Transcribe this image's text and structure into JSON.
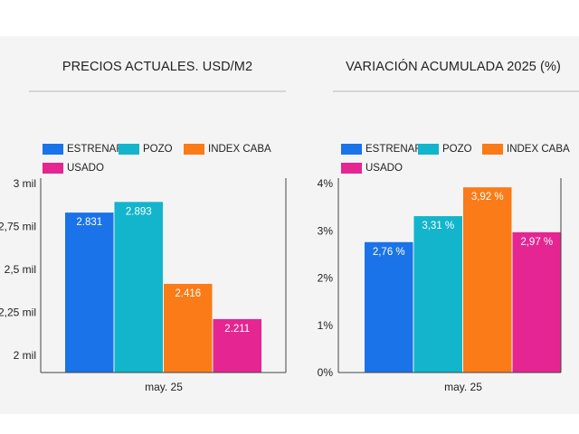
{
  "chart_data": [
    {
      "type": "bar",
      "title": "PRECIOS ACTUALES. USD/M2",
      "categories": [
        "may. 25"
      ],
      "series": [
        {
          "name": "ESTRENAR",
          "values": [
            2831
          ],
          "label": "2.831",
          "color": "#1a73e8"
        },
        {
          "name": "POZO",
          "values": [
            2893
          ],
          "label": "2.893",
          "color": "#12b5cb"
        },
        {
          "name": "INDEX CABA",
          "values": [
            2416
          ],
          "label": "2.416",
          "color": "#fa7b17"
        },
        {
          "name": "USADO",
          "values": [
            2211
          ],
          "label": "2.211",
          "color": "#e52592"
        }
      ],
      "ylim": [
        1900,
        3000
      ],
      "yticks": [
        {
          "value": 2000,
          "label": "2 mil"
        },
        {
          "value": 2250,
          "label": "2,25 mil"
        },
        {
          "value": 2500,
          "label": "2,5 mil"
        },
        {
          "value": 2750,
          "label": "2,75 mil"
        },
        {
          "value": 3000,
          "label": "3 mil"
        }
      ],
      "legend_position": "top-left",
      "grid": false
    },
    {
      "type": "bar",
      "title": "VARIACIÓN ACUMULADA 2025 (%)",
      "categories": [
        "may. 25"
      ],
      "series": [
        {
          "name": "ESTRENAR",
          "values": [
            2.76
          ],
          "label": "2,76 %",
          "color": "#1a73e8"
        },
        {
          "name": "POZO",
          "values": [
            3.31
          ],
          "label": "3,31 %",
          "color": "#12b5cb"
        },
        {
          "name": "INDEX CABA",
          "values": [
            3.92
          ],
          "label": "3,92 %",
          "color": "#fa7b17"
        },
        {
          "name": "USADO",
          "values": [
            2.97
          ],
          "label": "2,97 %",
          "color": "#e52592"
        }
      ],
      "ylim": [
        0,
        4
      ],
      "yticks": [
        {
          "value": 0,
          "label": "0%"
        },
        {
          "value": 1,
          "label": "1%"
        },
        {
          "value": 2,
          "label": "2%"
        },
        {
          "value": 3,
          "label": "3%"
        },
        {
          "value": 4,
          "label": "4%"
        }
      ],
      "legend_position": "top-left",
      "grid": false
    }
  ]
}
